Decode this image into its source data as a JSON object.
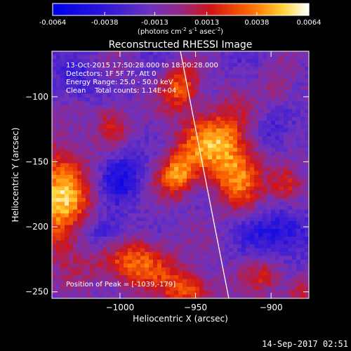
{
  "chart_data": {
    "type": "heatmap",
    "title": "Reconstructed RHESSI Image",
    "xlabel": "Heliocentric X (arcsec)",
    "ylabel": "Heliocentric Y (arcsec)",
    "x_ticks": [
      -1000,
      -950,
      -900
    ],
    "y_ticks": [
      -100,
      -150,
      -200,
      -250
    ],
    "xlim": [
      -1045,
      -875
    ],
    "ylim": [
      -255,
      -65
    ],
    "colorbar": {
      "min": -0.0064,
      "max": 0.0064,
      "ticks": [
        "-0.0064",
        "-0.0038",
        "-0.0013",
        "0.0013",
        "0.0038",
        "0.0064"
      ],
      "unit_label": "(photons cm",
      "unit_sup1": "-2",
      "unit_mid1": " s",
      "unit_sup2": "-1",
      "unit_mid2": " asec",
      "unit_sup3": "-2",
      "unit_end": ")"
    },
    "annotations": [
      "13-Oct-2015 17:50:28.000 to 18:00:28.000",
      "Detectors: 1F 5F 7F, Att 0",
      "Energy Range: 25.0 - 50.0 keV",
      "Clean    Total counts: 1.14E+04"
    ],
    "peak_label": "Position of Peak = [-1039,-179]",
    "limb_line": [
      [
        -960,
        -65
      ],
      [
        -928,
        -255
      ]
    ],
    "sources": [
      {
        "x": -960,
        "y": -92,
        "sx": 9,
        "sy": 12,
        "amp": 0.0045
      },
      {
        "x": -935,
        "y": -135,
        "sx": 18,
        "sy": 18,
        "amp": 0.006
      },
      {
        "x": -962,
        "y": -160,
        "sx": 9,
        "sy": 12,
        "amp": 0.0052
      },
      {
        "x": -922,
        "y": -165,
        "sx": 12,
        "sy": 16,
        "amp": 0.004
      },
      {
        "x": -1039,
        "y": -179,
        "sx": 14,
        "sy": 30,
        "amp": 0.0064
      },
      {
        "x": -1005,
        "y": -120,
        "sx": 8,
        "sy": 12,
        "amp": 0.003
      },
      {
        "x": -890,
        "y": -168,
        "sx": 8,
        "sy": 10,
        "amp": 0.004
      },
      {
        "x": -990,
        "y": -228,
        "sx": 18,
        "sy": 14,
        "amp": 0.005
      },
      {
        "x": -955,
        "y": -248,
        "sx": 12,
        "sy": 10,
        "amp": 0.0045
      },
      {
        "x": -905,
        "y": -238,
        "sx": 10,
        "sy": 10,
        "amp": 0.003
      },
      {
        "x": -880,
        "y": -250,
        "sx": 8,
        "sy": 8,
        "amp": 0.003
      },
      {
        "x": -895,
        "y": -95,
        "sx": 8,
        "sy": 10,
        "amp": 0.0018
      },
      {
        "x": -1030,
        "y": -90,
        "sx": 10,
        "sy": 12,
        "amp": -0.002
      },
      {
        "x": -1000,
        "y": -160,
        "sx": 10,
        "sy": 14,
        "amp": -0.003
      },
      {
        "x": -900,
        "y": -130,
        "sx": 10,
        "sy": 12,
        "amp": -0.0025
      },
      {
        "x": -895,
        "y": -205,
        "sx": 14,
        "sy": 12,
        "amp": -0.0035
      },
      {
        "x": -1010,
        "y": -205,
        "sx": 12,
        "sy": 10,
        "amp": -0.003
      }
    ]
  },
  "footer": {
    "timestamp": "14-Sep-2017 02:51"
  }
}
